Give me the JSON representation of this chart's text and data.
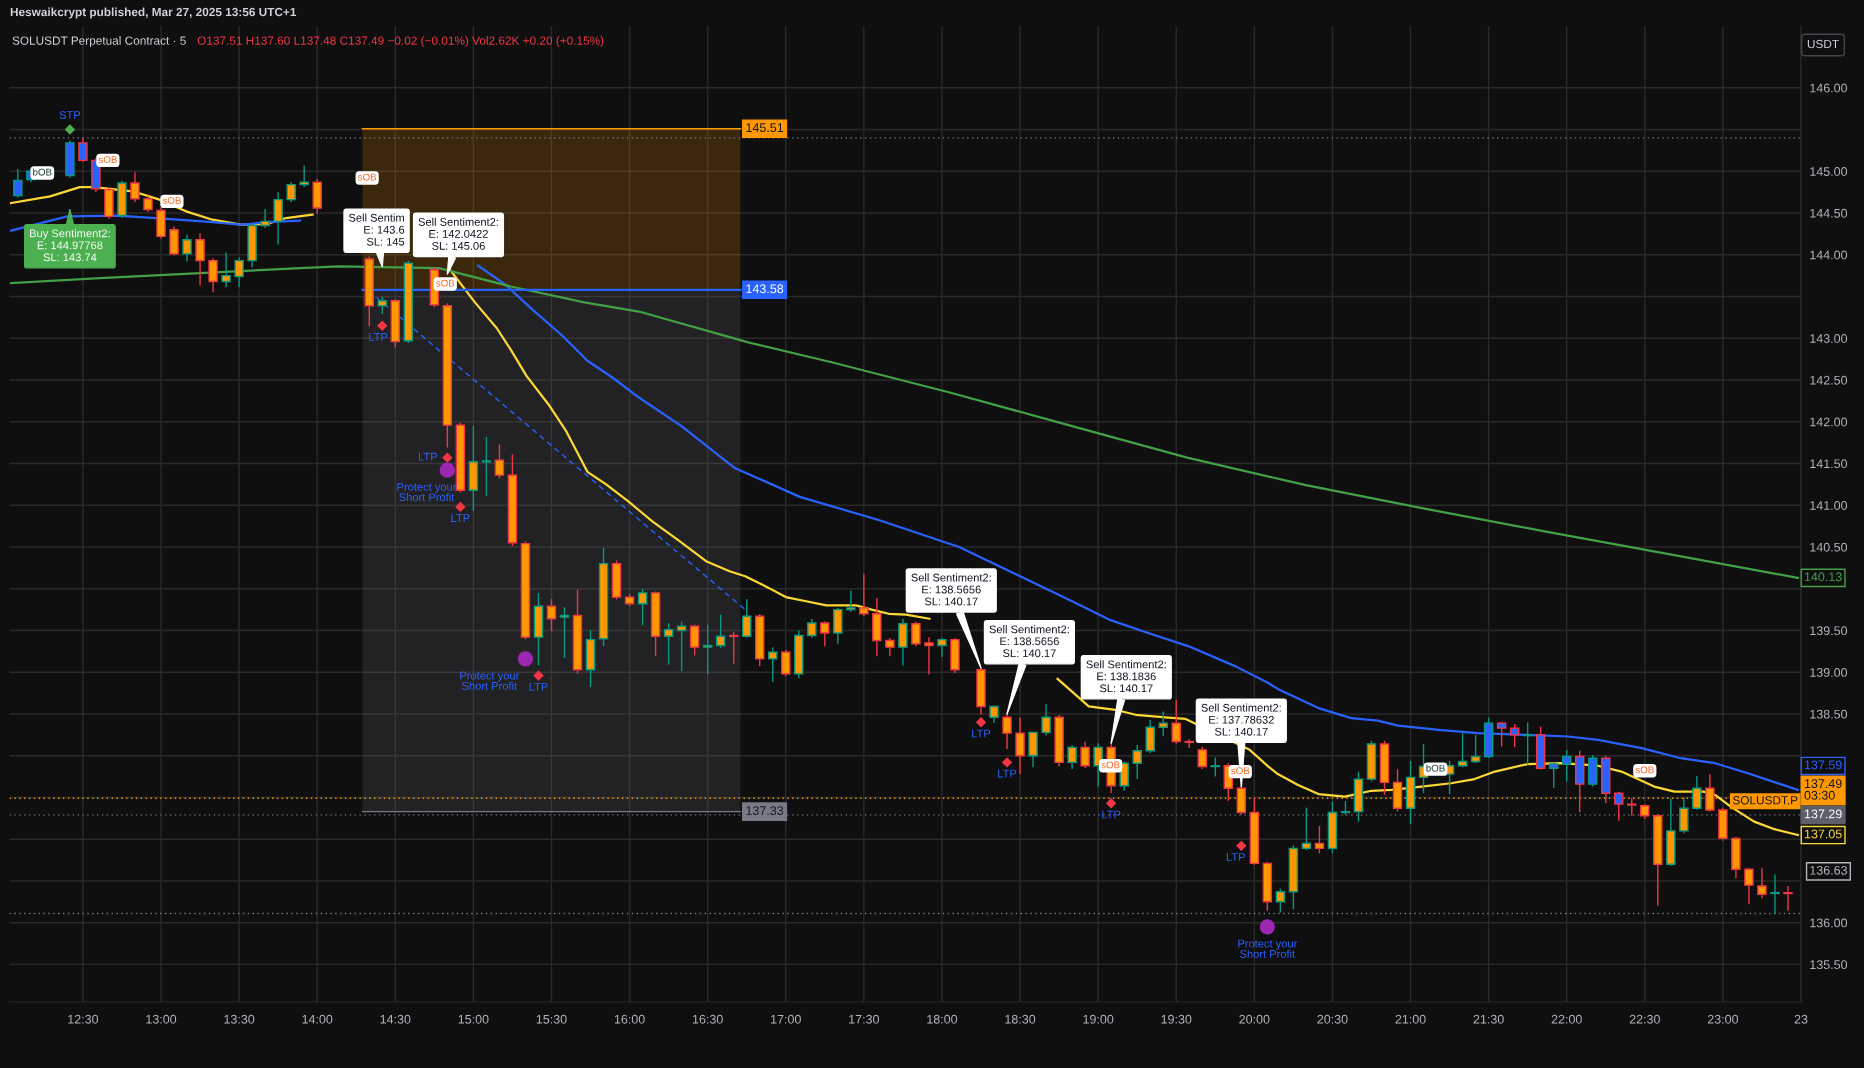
{
  "chart_data": {
    "type": "candlestick",
    "title": "SOLUSDT Perpetual Contract · 5",
    "subtitle": "O137.51 H137.60 L137.48 C137.49 −0.02 (−0.01%) Vol2.62K +0.20 (+0.15%)",
    "ylabel": "USDT",
    "xlim": [
      12.03,
      23.5
    ],
    "ylim": [
      135.05,
      146.74
    ],
    "xticks": [
      {
        "value": 12.5,
        "label": "12:30"
      },
      {
        "value": 13,
        "label": "13:00"
      },
      {
        "value": 13.5,
        "label": "13:30"
      },
      {
        "value": 14,
        "label": "14:00"
      },
      {
        "value": 14.5,
        "label": "14:30"
      },
      {
        "value": 15,
        "label": "15:00"
      },
      {
        "value": 15.5,
        "label": "15:30"
      },
      {
        "value": 16,
        "label": "16:00"
      },
      {
        "value": 16.5,
        "label": "16:30"
      },
      {
        "value": 17,
        "label": "17:00"
      },
      {
        "value": 17.5,
        "label": "17:30"
      },
      {
        "value": 18,
        "label": "18:00"
      },
      {
        "value": 18.5,
        "label": "18:30"
      },
      {
        "value": 19,
        "label": "19:00"
      },
      {
        "value": 19.5,
        "label": "19:30"
      },
      {
        "value": 20,
        "label": "20:00"
      },
      {
        "value": 20.5,
        "label": "20:30"
      },
      {
        "value": 21,
        "label": "21:00"
      },
      {
        "value": 21.5,
        "label": "21:30"
      },
      {
        "value": 22,
        "label": "22:00"
      },
      {
        "value": 22.5,
        "label": "22:30"
      },
      {
        "value": 23,
        "label": "23:00"
      },
      {
        "value": 23.5,
        "label": "23"
      }
    ],
    "yticks": [
      {
        "value": 135.5,
        "label": "135.50"
      },
      {
        "value": 136.0,
        "label": "136.00"
      },
      {
        "value": 136.5,
        "label": null
      },
      {
        "value": 136.63,
        "label": "136.63"
      },
      {
        "value": 137.0,
        "label": null
      },
      {
        "value": 137.5,
        "label": null
      },
      {
        "value": 138.0,
        "label": null
      },
      {
        "value": 138.5,
        "label": "138.50"
      },
      {
        "value": 139.0,
        "label": "139.00"
      },
      {
        "value": 139.5,
        "label": "139.50"
      },
      {
        "value": 140.0,
        "label": null
      },
      {
        "value": 140.5,
        "label": "140.50"
      },
      {
        "value": 141.0,
        "label": "141.00"
      },
      {
        "value": 141.5,
        "label": "141.50"
      },
      {
        "value": 142.0,
        "label": "142.00"
      },
      {
        "value": 142.5,
        "label": "142.50"
      },
      {
        "value": 143.0,
        "label": "143.00"
      },
      {
        "value": 143.5,
        "label": null
      },
      {
        "value": 144.0,
        "label": "144.00"
      },
      {
        "value": 144.5,
        "label": "144.50"
      },
      {
        "value": 145.0,
        "label": "145.00"
      },
      {
        "value": 145.5,
        "label": null
      },
      {
        "value": 146.0,
        "label": "146.00"
      }
    ],
    "grid": true,
    "series": [
      {
        "color": "#089981",
        "x": [
          12.0833,
          12.1667,
          12.4167,
          12.75,
          13.1667,
          13.4167,
          13.5,
          13.5833,
          13.6667,
          13.75,
          13.8333,
          13.9167,
          14.4167,
          14.5833,
          15.0,
          15.0833,
          15.4167,
          15.5833,
          15.75,
          15.8333,
          16.0833,
          16.25,
          16.3333,
          16.5,
          16.5833,
          16.75,
          16.9167,
          17.0833,
          17.1667,
          17.3333,
          17.4167,
          17.75,
          18.0,
          18.3333,
          18.5833,
          18.6667,
          18.8333,
          19.0,
          19.1667,
          19.25,
          19.3333,
          19.4167,
          19.75,
          20.1667,
          20.25,
          20.3333,
          20.5,
          20.5833,
          20.6667,
          20.75,
          21.0,
          21.0833,
          21.25,
          21.3333,
          21.4167,
          21.5,
          21.75,
          21.9167,
          22.0,
          22.1667,
          22.6667,
          22.75,
          22.8333,
          23.3333
        ],
        "ohlc": [
          [
            144.71,
            145.02,
            144.69,
            144.89
          ],
          [
            144.9,
            145.02,
            144.88,
            145.0
          ],
          [
            144.95,
            145.36,
            144.93,
            145.34
          ],
          [
            144.47,
            144.88,
            144.45,
            144.86
          ],
          [
            144.01,
            144.23,
            143.93,
            144.18
          ],
          [
            143.68,
            144.02,
            143.62,
            143.75
          ],
          [
            143.74,
            143.96,
            143.62,
            143.93
          ],
          [
            143.93,
            144.35,
            143.86,
            144.35
          ],
          [
            144.35,
            144.54,
            144.33,
            144.4
          ],
          [
            144.4,
            144.74,
            144.13,
            144.66
          ],
          [
            144.66,
            144.86,
            144.64,
            144.84
          ],
          [
            144.84,
            145.06,
            144.82,
            144.87
          ],
          [
            143.39,
            143.49,
            143.3,
            143.45
          ],
          [
            142.97,
            143.92,
            142.95,
            143.9
          ],
          [
            141.18,
            141.94,
            140.94,
            141.52
          ],
          [
            141.52,
            141.81,
            141.12,
            141.53
          ],
          [
            139.42,
            139.94,
            139.09,
            139.79
          ],
          [
            139.66,
            139.77,
            139.18,
            139.68
          ],
          [
            139.03,
            139.5,
            138.83,
            139.39
          ],
          [
            139.4,
            140.48,
            139.32,
            140.3
          ],
          [
            139.82,
            139.99,
            139.57,
            139.95
          ],
          [
            139.43,
            139.58,
            139.1,
            139.51
          ],
          [
            139.5,
            139.6,
            139.02,
            139.55
          ],
          [
            139.3,
            139.56,
            138.98,
            139.32
          ],
          [
            139.32,
            139.68,
            139.3,
            139.43
          ],
          [
            139.43,
            139.87,
            139.42,
            139.67
          ],
          [
            139.16,
            139.29,
            138.89,
            139.24
          ],
          [
            138.98,
            139.49,
            138.94,
            139.44
          ],
          [
            139.44,
            139.63,
            139.42,
            139.59
          ],
          [
            139.47,
            139.76,
            139.35,
            139.75
          ],
          [
            139.75,
            139.97,
            139.73,
            139.77
          ],
          [
            139.3,
            139.63,
            139.09,
            139.58
          ],
          [
            139.32,
            139.4,
            139.19,
            139.39
          ],
          [
            138.46,
            138.59,
            138.4,
            138.59
          ],
          [
            138.0,
            138.28,
            137.87,
            138.28
          ],
          [
            138.28,
            138.61,
            138.25,
            138.46
          ],
          [
            137.92,
            138.12,
            137.85,
            138.1
          ],
          [
            137.88,
            138.14,
            137.64,
            138.1
          ],
          [
            137.64,
            137.92,
            137.59,
            137.91
          ],
          [
            137.91,
            138.12,
            137.73,
            138.06
          ],
          [
            138.06,
            138.42,
            138.04,
            138.34
          ],
          [
            138.34,
            138.52,
            138.24,
            138.39
          ],
          [
            137.87,
            137.97,
            137.76,
            137.88
          ],
          [
            136.25,
            136.4,
            136.13,
            136.37
          ],
          [
            136.37,
            136.92,
            136.17,
            136.89
          ],
          [
            136.89,
            137.37,
            136.88,
            136.95
          ],
          [
            136.89,
            137.44,
            136.84,
            137.32
          ],
          [
            137.32,
            137.45,
            137.3,
            137.33
          ],
          [
            137.33,
            137.8,
            137.22,
            137.72
          ],
          [
            137.72,
            138.17,
            137.7,
            138.14
          ],
          [
            137.37,
            137.93,
            137.19,
            137.74
          ],
          [
            137.74,
            138.13,
            137.56,
            137.87
          ],
          [
            137.78,
            137.93,
            137.55,
            137.88
          ],
          [
            137.88,
            138.26,
            137.87,
            137.93
          ],
          [
            137.93,
            138.24,
            137.92,
            137.99
          ],
          [
            137.99,
            138.45,
            137.98,
            138.39
          ],
          [
            138.24,
            138.39,
            137.9,
            138.25
          ],
          [
            137.85,
            137.91,
            137.62,
            137.9
          ],
          [
            137.9,
            138.06,
            137.7,
            137.99
          ],
          [
            137.66,
            138.0,
            137.64,
            137.97
          ],
          [
            136.7,
            137.48,
            136.69,
            137.1
          ],
          [
            137.1,
            137.49,
            137.08,
            137.37
          ],
          [
            137.37,
            137.75,
            137.36,
            137.61
          ],
          [
            136.35,
            136.57,
            136.11,
            136.36
          ]
        ],
        "colors": [
          "#2962ff",
          "#2962ff",
          "#2962ff",
          "#ff9800",
          "#ff9800",
          "#ff9800",
          "#ff9800",
          "#ff9800",
          "#ff9800",
          "#ff9800",
          "#ff9800",
          "#ff9800",
          "#ff9800",
          "#ff9800",
          "#ff9800",
          "#ff9800",
          "#ff9800",
          "#ff9800",
          "#ff9800",
          "#ff9800",
          "#ff9800",
          "#ff9800",
          "#ff9800",
          "#ff9800",
          "#ff9800",
          "#ff9800",
          "#ff9800",
          "#ff9800",
          "#ff9800",
          "#ff9800",
          "#ff9800",
          "#ff9800",
          "#ff9800",
          "#ff9800",
          "#ff9800",
          "#ff9800",
          "#ff9800",
          "#ff9800",
          "#ff9800",
          "#ff9800",
          "#ff9800",
          "#ff9800",
          "#ff9800",
          "#ff9800",
          "#ff9800",
          "#ff9800",
          "#ff9800",
          "#ff9800",
          "#ff9800",
          "#ff9800",
          "#ff9800",
          "#ff9800",
          "#ff9800",
          "#ff9800",
          "#ff9800",
          "#2962ff",
          "#2962ff",
          "#2962ff",
          "#2962ff",
          "#2962ff",
          "#ff9800",
          "#ff9800",
          "#ff9800",
          "#ff9800"
        ]
      },
      {
        "color": "#f23645",
        "x": [
          12.5,
          12.5833,
          12.6667,
          12.8333,
          12.9167,
          13.0,
          13.0833,
          13.25,
          13.3333,
          14.0,
          14.3333,
          14.5,
          14.75,
          14.8333,
          14.9167,
          15.1667,
          15.25,
          15.3333,
          15.5,
          15.6667,
          15.9167,
          16.0,
          16.1667,
          16.4167,
          16.6667,
          16.8333,
          17.0,
          17.25,
          17.5,
          17.5833,
          17.6667,
          17.8333,
          17.9167,
          18.0833,
          18.25,
          18.4167,
          18.5,
          18.75,
          18.9167,
          19.0833,
          19.5,
          19.5833,
          19.6667,
          19.8333,
          19.9167,
          20.0,
          20.0833,
          20.4167,
          20.8333,
          20.9167,
          21.5833,
          21.6667,
          21.8333,
          22.0833,
          22.25,
          22.3333,
          22.4167,
          22.5,
          22.5833,
          22.9167,
          23.0,
          23.0833,
          23.1667,
          23.25,
          23.4167
        ],
        "ohlc": [
          [
            145.34,
            145.39,
            145.12,
            145.13
          ],
          [
            145.13,
            145.15,
            144.76,
            144.79
          ],
          [
            144.78,
            144.8,
            144.44,
            144.46
          ],
          [
            144.86,
            144.98,
            144.64,
            144.67
          ],
          [
            144.67,
            144.7,
            144.52,
            144.54
          ],
          [
            144.53,
            144.56,
            144.2,
            144.22
          ],
          [
            144.3,
            144.33,
            144.0,
            144.01
          ],
          [
            144.18,
            144.25,
            143.64,
            143.93
          ],
          [
            143.93,
            143.95,
            143.56,
            143.68
          ],
          [
            144.87,
            144.9,
            144.5,
            144.56
          ],
          [
            143.95,
            143.97,
            143.15,
            143.39
          ],
          [
            143.45,
            143.46,
            142.9,
            142.96
          ],
          [
            143.82,
            143.84,
            143.38,
            143.4
          ],
          [
            143.39,
            143.41,
            141.7,
            141.96
          ],
          [
            141.96,
            141.98,
            141.16,
            141.18
          ],
          [
            141.54,
            141.72,
            141.33,
            141.36
          ],
          [
            141.36,
            141.6,
            140.52,
            140.55
          ],
          [
            140.54,
            140.56,
            139.4,
            139.42
          ],
          [
            139.79,
            139.87,
            139.5,
            139.64
          ],
          [
            139.68,
            139.98,
            138.99,
            139.03
          ],
          [
            140.3,
            140.33,
            139.88,
            139.9
          ],
          [
            139.9,
            139.93,
            139.8,
            139.82
          ],
          [
            139.95,
            139.96,
            139.2,
            139.43
          ],
          [
            139.55,
            139.56,
            139.21,
            139.3
          ],
          [
            139.44,
            139.47,
            139.11,
            139.43
          ],
          [
            139.67,
            139.69,
            139.08,
            139.16
          ],
          [
            139.24,
            139.26,
            138.96,
            138.98
          ],
          [
            139.59,
            139.6,
            139.32,
            139.47
          ],
          [
            139.77,
            140.17,
            139.68,
            139.7
          ],
          [
            139.7,
            139.88,
            139.2,
            139.38
          ],
          [
            139.38,
            139.4,
            139.2,
            139.3
          ],
          [
            139.58,
            139.6,
            139.32,
            139.34
          ],
          [
            139.35,
            139.41,
            138.98,
            139.32
          ],
          [
            139.39,
            139.4,
            139.0,
            139.03
          ],
          [
            139.03,
            139.05,
            138.5,
            138.59
          ],
          [
            138.46,
            138.5,
            138.09,
            138.27
          ],
          [
            138.27,
            138.45,
            137.79,
            138.0
          ],
          [
            138.46,
            138.48,
            137.88,
            137.92
          ],
          [
            138.1,
            138.16,
            137.86,
            137.88
          ],
          [
            138.1,
            138.15,
            137.56,
            137.64
          ],
          [
            138.39,
            138.66,
            138.15,
            138.17
          ],
          [
            138.17,
            138.19,
            138.1,
            138.16
          ],
          [
            138.07,
            138.1,
            137.85,
            137.87
          ],
          [
            137.88,
            137.9,
            137.47,
            137.61
          ],
          [
            137.61,
            137.63,
            137.3,
            137.32
          ],
          [
            137.32,
            137.49,
            136.7,
            136.71
          ],
          [
            136.71,
            136.72,
            136.15,
            136.25
          ],
          [
            136.95,
            137.15,
            136.84,
            136.89
          ],
          [
            138.14,
            138.17,
            137.54,
            137.68
          ],
          [
            137.68,
            137.83,
            137.34,
            137.37
          ],
          [
            138.39,
            138.4,
            138.12,
            138.33
          ],
          [
            138.33,
            138.37,
            138.11,
            138.25
          ],
          [
            138.25,
            138.34,
            137.84,
            137.85
          ],
          [
            137.99,
            138.05,
            137.33,
            137.66
          ],
          [
            137.97,
            137.99,
            137.44,
            137.55
          ],
          [
            137.55,
            137.56,
            137.23,
            137.42
          ],
          [
            137.42,
            137.48,
            137.29,
            137.41
          ],
          [
            137.4,
            137.41,
            137.25,
            137.28
          ],
          [
            137.28,
            137.29,
            136.21,
            136.7
          ],
          [
            137.61,
            137.77,
            137.34,
            137.35
          ],
          [
            137.35,
            137.37,
            136.99,
            137.01
          ],
          [
            137.01,
            137.02,
            136.54,
            136.64
          ],
          [
            136.64,
            136.65,
            136.23,
            136.45
          ],
          [
            136.44,
            136.65,
            136.3,
            136.34
          ],
          [
            136.36,
            136.43,
            136.15,
            136.35
          ]
        ],
        "colors": [
          "#2962ff",
          "#2962ff",
          "#ff9800",
          "#ff9800",
          "#ff9800",
          "#ff9800",
          "#ff9800",
          "#ff9800",
          "#ff9800",
          "#ff9800",
          "#ff9800",
          "#ff9800",
          "#ff9800",
          "#ff9800",
          "#ff9800",
          "#ff9800",
          "#ff9800",
          "#ff9800",
          "#ff9800",
          "#ff9800",
          "#ff9800",
          "#ff9800",
          "#ff9800",
          "#ff9800",
          "#ff9800",
          "#ff9800",
          "#ff9800",
          "#ff9800",
          "#ff9800",
          "#ff9800",
          "#ff9800",
          "#ff9800",
          "#ff9800",
          "#ff9800",
          "#ff9800",
          "#ff9800",
          "#ff9800",
          "#ff9800",
          "#ff9800",
          "#ff9800",
          "#ff9800",
          "#ff9800",
          "#ff9800",
          "#ff9800",
          "#ff9800",
          "#ff9800",
          "#ff9800",
          "#ff9800",
          "#ff9800",
          "#ff9800",
          "#2962ff",
          "#2962ff",
          "#2962ff",
          "#2962ff",
          "#2962ff",
          "#2962ff",
          "#ff9800",
          "#ff9800",
          "#ff9800",
          "#ff9800",
          "#ff9800",
          "#ff9800",
          "#ff9800",
          "#ff9800",
          "#ff9800"
        ]
      },
      {
        "type": "line",
        "color": "#fdd835",
        "x": [
          12.04,
          12.29,
          12.48,
          12.57,
          12.82,
          12.99,
          13.16,
          13.33,
          13.51,
          13.68,
          13.8,
          13.97,
          14.14,
          14.85,
          15.01,
          15.15,
          15.24,
          15.34,
          15.48,
          15.59,
          15.73,
          15.85,
          15.99,
          16.06,
          16.15,
          16.32,
          16.49,
          16.64,
          16.74,
          16.89,
          17.0,
          17.13,
          17.26,
          17.45,
          17.55,
          17.66,
          17.77,
          17.92,
          18.11,
          18.74,
          18.94,
          19.11,
          19.24,
          19.43,
          19.56,
          19.97,
          20.09,
          20.15,
          20.28,
          20.41,
          20.58,
          20.75,
          20.88,
          21.07,
          21.26,
          21.41,
          21.54,
          21.75,
          21.97,
          22.2,
          22.35,
          22.56,
          22.69,
          22.875,
          22.95,
          23.05,
          23.2,
          23.33,
          23.48
        ],
        "values": [
          144.62,
          144.7,
          144.81,
          144.81,
          144.76,
          144.66,
          144.52,
          144.42,
          144.36,
          144.37,
          144.44,
          144.48,
          null,
          143.82,
          143.43,
          143.12,
          142.86,
          142.55,
          142.21,
          141.9,
          141.4,
          141.25,
          141.05,
          140.94,
          140.8,
          140.57,
          140.33,
          140.21,
          140.15,
          140.01,
          139.9,
          139.85,
          139.8,
          139.8,
          139.75,
          139.7,
          139.69,
          139.64,
          null,
          138.92,
          138.59,
          138.55,
          138.49,
          138.46,
          138.44,
          138.07,
          137.87,
          137.78,
          137.65,
          137.54,
          137.51,
          137.58,
          137.59,
          137.63,
          137.67,
          137.72,
          137.81,
          137.9,
          137.91,
          137.88,
          137.81,
          137.63,
          137.57,
          137.57,
          137.53,
          137.39,
          137.21,
          137.12,
          137.05
        ],
        "value_labels": [
          null,
          null,
          null,
          null,
          null,
          null,
          null,
          null,
          null,
          null,
          null,
          null,
          null,
          null,
          null,
          null,
          null,
          null,
          null,
          null,
          null,
          null,
          null,
          null,
          null,
          null,
          null,
          null,
          null,
          null,
          null,
          null,
          null,
          null,
          null,
          null,
          null,
          null,
          null,
          null,
          null,
          null,
          null,
          null,
          null,
          null,
          null,
          null,
          null,
          null,
          null,
          null,
          null,
          null,
          null,
          null,
          null,
          null,
          null,
          null,
          null,
          null,
          null,
          null,
          null,
          null,
          null,
          null,
          "137.05"
        ]
      },
      {
        "type": "line",
        "color": "#2962ff",
        "x": [
          12.04,
          12.4,
          12.72,
          13.04,
          13.33,
          13.51,
          13.68,
          13.89,
          14.14,
          15.03,
          15.2,
          15.38,
          15.57,
          15.73,
          15.89,
          16.06,
          16.33,
          16.67,
          17.09,
          17.6,
          18.11,
          18.81,
          19.07,
          19.32,
          19.58,
          19.88,
          20.09,
          20.15,
          20.41,
          20.62,
          20.79,
          20.92,
          21.18,
          21.43,
          21.75,
          22.01,
          22.2,
          22.48,
          22.73,
          22.95,
          23.16,
          23.48
        ],
        "values": [
          144.29,
          144.46,
          144.47,
          144.43,
          144.39,
          144.36,
          144.39,
          144.41,
          null,
          143.87,
          143.65,
          143.34,
          143.03,
          142.73,
          142.53,
          142.29,
          141.95,
          141.45,
          141.1,
          140.82,
          140.5,
          139.87,
          139.63,
          139.47,
          139.31,
          139.07,
          138.87,
          138.8,
          138.57,
          138.45,
          138.42,
          138.36,
          138.31,
          138.27,
          138.25,
          138.23,
          138.19,
          138.09,
          137.97,
          137.91,
          137.79,
          137.59
        ],
        "value_labels": [
          null,
          null,
          null,
          null,
          null,
          null,
          null,
          null,
          null,
          null,
          null,
          null,
          null,
          null,
          null,
          null,
          null,
          null,
          null,
          null,
          null,
          null,
          null,
          null,
          null,
          null,
          null,
          null,
          null,
          null,
          null,
          null,
          null,
          null,
          null,
          null,
          null,
          null,
          null,
          null,
          null,
          "137.59"
        ]
      },
      {
        "type": "line",
        "color": "#43a047",
        "x": [
          12.04,
          12.61,
          13.25,
          13.89,
          14.14,
          14.78,
          15.24,
          15.71,
          16.06,
          16.76,
          17.3,
          18.05,
          18.81,
          19.57,
          20.33,
          21.09,
          21.85,
          22.61,
          23.48
        ],
        "values": [
          143.66,
          143.72,
          143.78,
          143.84,
          143.86,
          143.84,
          143.62,
          143.43,
          143.32,
          142.95,
          142.71,
          142.35,
          141.96,
          141.57,
          141.24,
          140.96,
          140.69,
          140.43,
          140.13
        ],
        "value_labels": [
          null,
          null,
          null,
          null,
          null,
          null,
          null,
          null,
          null,
          null,
          null,
          null,
          null,
          null,
          null,
          null,
          null,
          null,
          "140.13"
        ]
      },
      {
        "type": "line",
        "color": "#2962ff",
        "line_style": "dashed",
        "x": [
          14.38,
          16.74
        ],
        "values": [
          143.49,
          139.75
        ]
      },
      {
        "type": "scatter",
        "color": "#f23645",
        "marker": "diamond",
        "x": [
          14.4167,
          14.8333,
          14.9167,
          15.4167,
          18.25,
          18.4167,
          19.0833,
          19.9167
        ],
        "values": [
          143.15,
          141.57,
          140.98,
          138.96,
          138.4,
          137.92,
          137.43,
          136.92
        ]
      },
      {
        "type": "scatter",
        "color": "#9c27b0",
        "marker": "circle",
        "x": [
          14.8333,
          15.3333,
          20.0833
        ],
        "values": [
          141.42,
          139.16,
          135.95
        ]
      },
      {
        "type": "scatter",
        "color": "#4caf50",
        "marker": "diamond",
        "x": [
          12.4167
        ],
        "values": [
          145.5
        ]
      },
      {
        "type": "line",
        "color": "#ff9800",
        "x": [
          14.29,
          16.71
        ],
        "values": [
          145.51,
          145.51
        ],
        "upper": [
          145.51,
          145.51
        ],
        "lower": [
          143.58,
          143.58
        ],
        "value_labels": [
          null,
          "145.51"
        ]
      },
      {
        "type": "line",
        "color": "#787b86",
        "x": [
          14.29,
          16.71
        ],
        "values": [
          137.33,
          137.33
        ],
        "upper": [
          143.58,
          143.58
        ],
        "lower": [
          137.33,
          137.33
        ],
        "value_labels": [
          null,
          "137.33"
        ]
      },
      {
        "type": "line",
        "color": "#2962ff",
        "x": [
          14.29,
          16.71
        ],
        "values": [
          143.58,
          143.58
        ],
        "value_labels": [
          null,
          "143.58"
        ]
      }
    ],
    "ref_lines": [
      {
        "axis": "y",
        "value": 145.4,
        "color": "#787b86",
        "line_style": "dotted"
      },
      {
        "axis": "y",
        "value": 137.49,
        "label": "137.49\n03:30",
        "color": "#ff9800",
        "line_style": "dotted"
      },
      {
        "axis": "y",
        "value": 137.29,
        "label": "137.29",
        "color": "#5d606b",
        "line_style": "dotted"
      },
      {
        "axis": "y",
        "value": 136.11,
        "color": "#787b86",
        "line_style": "dotted"
      }
    ],
    "annotations": [
      {
        "text": "STP",
        "x": 12.4167,
        "y": 145.5
      },
      {
        "text": "bOB",
        "x": 12.24,
        "y": 144.98
      },
      {
        "text": "sOB",
        "x": 12.66,
        "y": 145.13
      },
      {
        "text": "sOB",
        "x": 13.07,
        "y": 144.64
      },
      {
        "text": "sOB",
        "x": 14.32,
        "y": 144.92
      },
      {
        "text": "sOB",
        "x": 14.82,
        "y": 143.65
      },
      {
        "text": "sOB",
        "x": 19.08,
        "y": 137.88
      },
      {
        "text": "sOB",
        "x": 19.91,
        "y": 137.81
      },
      {
        "text": "bOB",
        "x": 21.16,
        "y": 137.84
      },
      {
        "text": "sOB",
        "x": 22.5,
        "y": 137.82
      },
      {
        "text": "Sell Sentim\nE: 143.6\nSL: 145",
        "x": 14.4167,
        "y": 143.86
      },
      {
        "text": "Sell Sentiment2:\nE: 142.0422\nSL: 145.06",
        "x": 14.8333,
        "y": 143.77
      },
      {
        "text": "Sell Sentiment2:\nE: 138.5656\nSL: 140.17",
        "x": 18.25,
        "y": 139.05
      },
      {
        "text": "Sell Sentiment2:\nE: 138.5656\nSL: 140.17",
        "x": 18.4167,
        "y": 138.5
      },
      {
        "text": "Sell Sentiment2:\nE: 138.1836\nSL: 140.17",
        "x": 19.0833,
        "y": 138.15
      },
      {
        "text": "Sell Sentiment2:\nE: 137.78632\nSL: 140.17",
        "x": 19.9167,
        "y": 137.63
      },
      {
        "text": "Buy Sentiment2:\nE: 144.97768\nSL: 143.74",
        "x": 12.4167,
        "y": 144.54
      },
      {
        "text": "LTP",
        "x": 14.4167,
        "y": 143.15
      },
      {
        "text": "LTP",
        "x": 14.8333,
        "y": 141.57
      },
      {
        "text": "LTP",
        "x": 14.9167,
        "y": 140.98
      },
      {
        "text": "LTP",
        "x": 15.4167,
        "y": 138.96
      },
      {
        "text": "LTP",
        "x": 18.25,
        "y": 138.4
      },
      {
        "text": "LTP",
        "x": 18.4167,
        "y": 137.92
      },
      {
        "text": "LTP",
        "x": 19.0833,
        "y": 137.43
      },
      {
        "text": "LTP",
        "x": 19.9167,
        "y": 136.92
      },
      {
        "text": "Protect your\nShort Profit",
        "x": 14.8333,
        "y": 141.42
      },
      {
        "text": "Protect your\nShort Profit",
        "x": 15.3333,
        "y": 139.16
      },
      {
        "text": "Protect your\nShort Profit",
        "x": 20.0833,
        "y": 135.95
      },
      "SOLUSDT.P",
      "Heswaikcrypt published, Mar 27, 2025 13:56 UTC+1"
    ]
  }
}
